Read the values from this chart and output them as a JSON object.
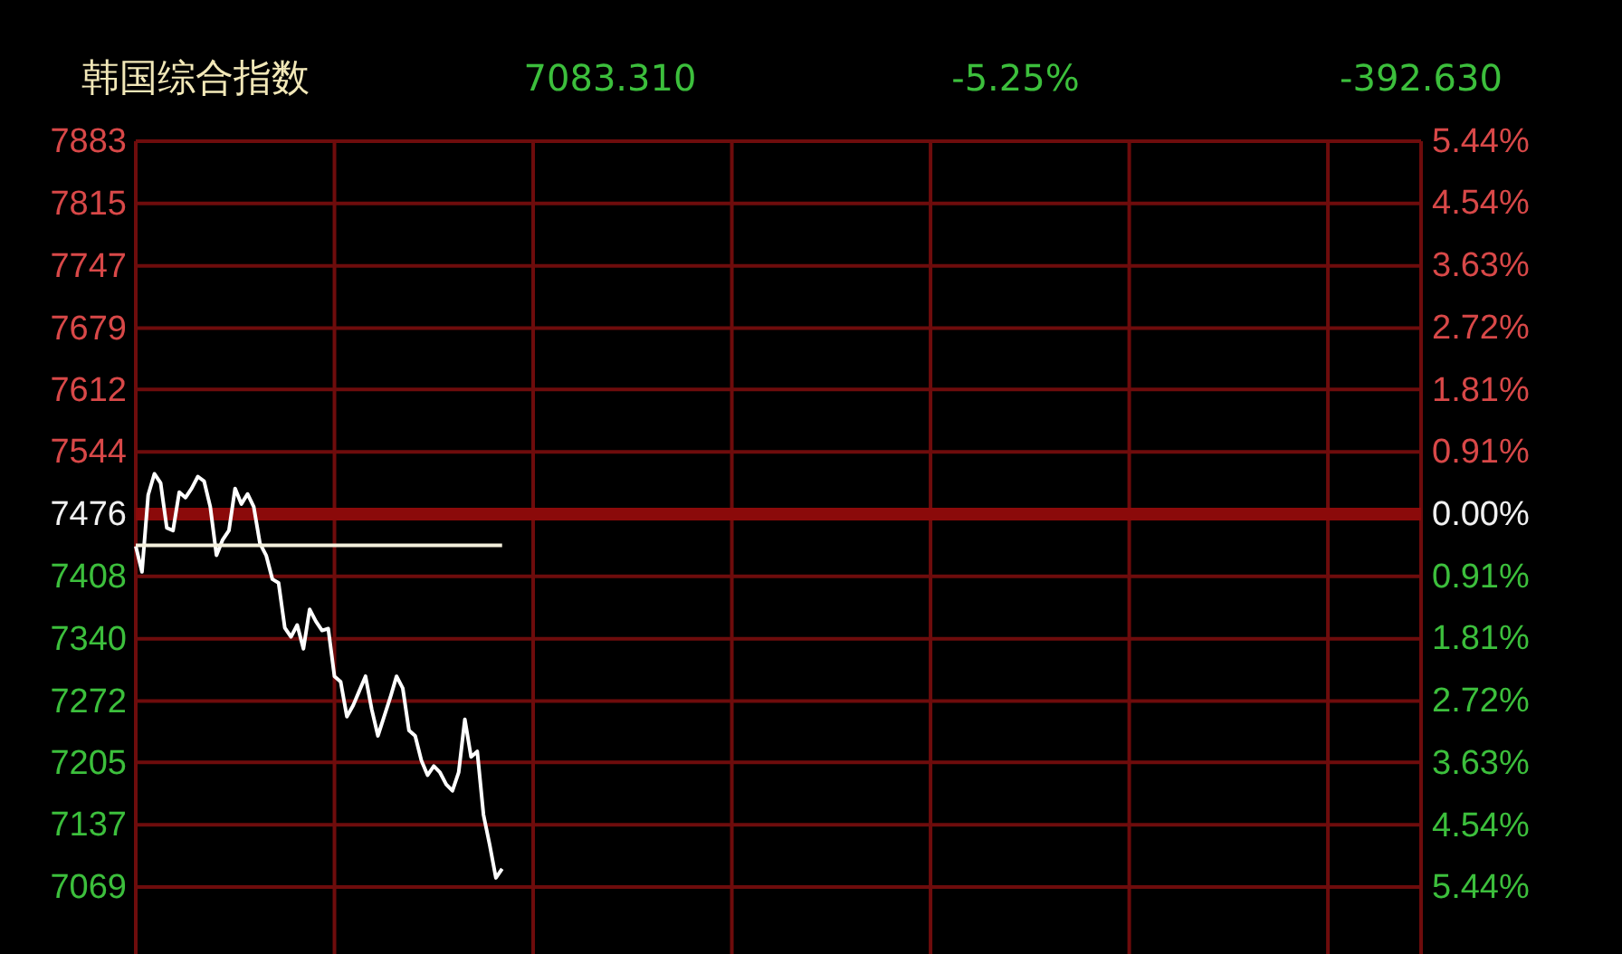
{
  "chart_data": {
    "type": "line",
    "title": "韩国综合指数",
    "annotations": [
      "7083.310",
      "-5.25%",
      "-392.630"
    ],
    "categories": [
      null,
      null,
      null,
      null,
      null,
      null,
      null,
      null,
      null,
      null,
      null,
      null,
      null,
      null,
      null,
      null,
      null,
      null,
      null,
      null,
      null,
      null,
      null,
      null,
      null,
      null,
      null,
      null,
      null,
      null,
      null,
      null,
      null,
      null,
      null,
      null,
      null,
      null,
      null,
      null,
      null,
      null,
      null,
      null,
      null,
      null,
      null,
      null,
      null,
      null,
      null,
      null,
      null,
      null,
      null,
      null,
      null,
      null,
      null,
      null,
      null,
      null,
      null,
      null,
      null,
      null,
      null,
      null,
      null,
      null,
      null,
      null,
      null,
      null,
      null,
      null,
      null,
      null,
      null,
      null,
      null,
      null,
      null,
      null,
      null,
      null,
      null,
      null,
      null,
      null,
      null,
      null,
      null,
      null,
      null,
      null,
      null,
      null,
      null,
      null,
      null,
      null,
      null,
      null,
      null,
      null,
      null,
      null,
      null,
      null,
      null,
      null,
      null,
      null,
      null,
      null,
      null,
      null,
      null,
      null,
      null,
      null,
      null,
      null,
      null,
      null,
      null,
      null,
      null,
      null,
      null,
      null,
      null,
      null,
      null,
      null,
      null,
      null,
      null,
      null,
      null,
      null,
      null,
      null,
      null,
      null,
      null,
      null,
      null,
      null,
      null,
      null,
      null,
      null,
      null,
      null,
      null,
      null,
      null,
      null,
      null,
      null,
      null,
      null,
      null,
      null,
      null,
      null,
      null,
      null,
      null,
      null,
      null,
      null,
      null,
      null,
      null,
      null,
      null,
      null,
      null,
      null,
      null,
      null,
      null,
      null,
      null,
      null,
      null,
      null,
      null,
      null,
      null,
      null,
      null,
      null,
      null,
      null,
      null,
      null,
      null,
      null,
      null,
      null,
      null,
      null,
      null,
      null
    ],
    "series": [
      {
        "color": "#ffffff",
        "values": [
          7441,
          7413,
          7497,
          7520,
          7510,
          7461,
          7458,
          7500,
          7494,
          7504,
          7517,
          7512,
          7484,
          7431,
          7448,
          7458,
          7504,
          7487,
          7498,
          7484,
          7444,
          7431,
          7405,
          7401,
          7352,
          7342,
          7355,
          7329,
          7372,
          7359,
          7349,
          7351,
          7299,
          7293,
          7255,
          7267,
          7283,
          7299,
          7263,
          7234,
          7255,
          7276,
          7299,
          7286,
          7240,
          7234,
          7207,
          7191,
          7201,
          7194,
          7181,
          7174,
          7194,
          7252,
          7211,
          7217,
          7148,
          7115,
          7079,
          7089,
          null,
          null,
          null,
          null,
          null,
          null,
          null,
          null,
          null,
          null,
          null,
          null,
          null,
          null,
          null,
          null,
          null,
          null,
          null,
          null,
          null,
          null,
          null,
          null,
          null,
          null,
          null,
          null,
          null,
          null,
          null,
          null,
          null,
          null,
          null,
          null,
          null,
          null,
          null,
          null,
          null,
          null,
          null,
          null,
          null,
          null,
          null,
          null,
          null,
          null,
          null,
          null,
          null,
          null,
          null,
          null,
          null,
          null,
          null,
          null,
          null,
          null,
          null,
          null,
          null,
          null,
          null,
          null,
          null,
          null,
          null,
          null,
          null,
          null,
          null,
          null,
          null,
          null,
          null,
          null,
          null,
          null,
          null,
          null,
          null,
          null,
          null,
          null,
          null,
          null,
          null,
          null,
          null,
          null,
          null,
          null,
          null,
          null,
          null,
          null,
          null,
          null,
          null,
          null,
          null,
          null,
          null,
          null,
          null,
          null,
          null,
          null,
          null,
          null,
          null,
          null,
          null,
          null,
          null,
          null,
          null,
          null,
          null,
          null,
          null,
          null,
          null,
          null,
          null,
          null,
          null,
          null,
          null,
          null,
          null,
          null,
          null,
          null,
          null,
          null,
          null,
          null,
          null,
          null,
          null,
          null,
          null,
          null
        ]
      },
      {
        "color": "#f4f0dc",
        "values": [
          7442,
          7442,
          7442,
          7442,
          7442,
          7442,
          7442,
          7442,
          7442,
          7442,
          7442,
          7442,
          7442,
          7442,
          7442,
          7442,
          7442,
          7442,
          7442,
          7442,
          7442,
          7442,
          7442,
          7442,
          7442,
          7442,
          7442,
          7442,
          7442,
          7442,
          7442,
          7442,
          7442,
          7442,
          7442,
          7442,
          7442,
          7442,
          7442,
          7442,
          7442,
          7442,
          7442,
          7442,
          7442,
          7442,
          7442,
          7442,
          7442,
          7442,
          7442,
          7442,
          7442,
          7442,
          7442,
          7442,
          7442,
          7442,
          7442,
          7442,
          null,
          null,
          null,
          null,
          null,
          null,
          null,
          null,
          null,
          null,
          null,
          null,
          null,
          null,
          null,
          null,
          null,
          null,
          null,
          null,
          null,
          null,
          null,
          null,
          null,
          null,
          null,
          null,
          null,
          null,
          null,
          null,
          null,
          null,
          null,
          null,
          null,
          null,
          null,
          null,
          null,
          null,
          null,
          null,
          null,
          null,
          null,
          null,
          null,
          null,
          null,
          null,
          null,
          null,
          null,
          null,
          null,
          null,
          null,
          null,
          null,
          null,
          null,
          null,
          null,
          null,
          null,
          null,
          null,
          null,
          null,
          null,
          null,
          null,
          null,
          null,
          null,
          null,
          null,
          null,
          null,
          null,
          null,
          null,
          null,
          null,
          null,
          null,
          null,
          null,
          null,
          null,
          null,
          null,
          null,
          null,
          null,
          null,
          null,
          null,
          null,
          null,
          null,
          null,
          null,
          null,
          null,
          null,
          null,
          null,
          null,
          null,
          null,
          null,
          null,
          null,
          null,
          null,
          null,
          null,
          null,
          null,
          null,
          null,
          null,
          null,
          null,
          null,
          null,
          null,
          null,
          null,
          null,
          null,
          null,
          null,
          null,
          null,
          null,
          null,
          null,
          null,
          null,
          null,
          null,
          null,
          null,
          null
        ]
      }
    ],
    "ylim": [
      7069,
      7883
    ],
    "yticks": [
      7069,
      7137,
      7205,
      7272,
      7340,
      7408,
      7476,
      7544,
      7612,
      7679,
      7747,
      7815,
      7883
    ],
    "y2lim": [
      -5.44,
      5.44
    ],
    "y2ticks": [
      {
        "value": -5.44,
        "label": "5.44%"
      },
      {
        "value": -4.54,
        "label": "4.54%"
      },
      {
        "value": -3.63,
        "label": "3.63%"
      },
      {
        "value": -2.72,
        "label": "2.72%"
      },
      {
        "value": -1.81,
        "label": "1.81%"
      },
      {
        "value": -0.91,
        "label": "0.91%"
      },
      {
        "value": 0,
        "label": "0.00%"
      },
      {
        "value": 0.91,
        "label": "0.91%"
      },
      {
        "value": 1.81,
        "label": "1.81%"
      },
      {
        "value": 2.72,
        "label": "2.72%"
      },
      {
        "value": 3.63,
        "label": "3.63%"
      },
      {
        "value": 4.54,
        "label": "4.54%"
      },
      {
        "value": 5.44,
        "label": "5.44%"
      }
    ],
    "ref_lines": [
      {
        "axis": "y",
        "value": 7476,
        "color": "#8b0a0a"
      }
    ],
    "grid": true,
    "tick_labels": "y",
    "marker": "none",
    "line_style": "solid"
  }
}
